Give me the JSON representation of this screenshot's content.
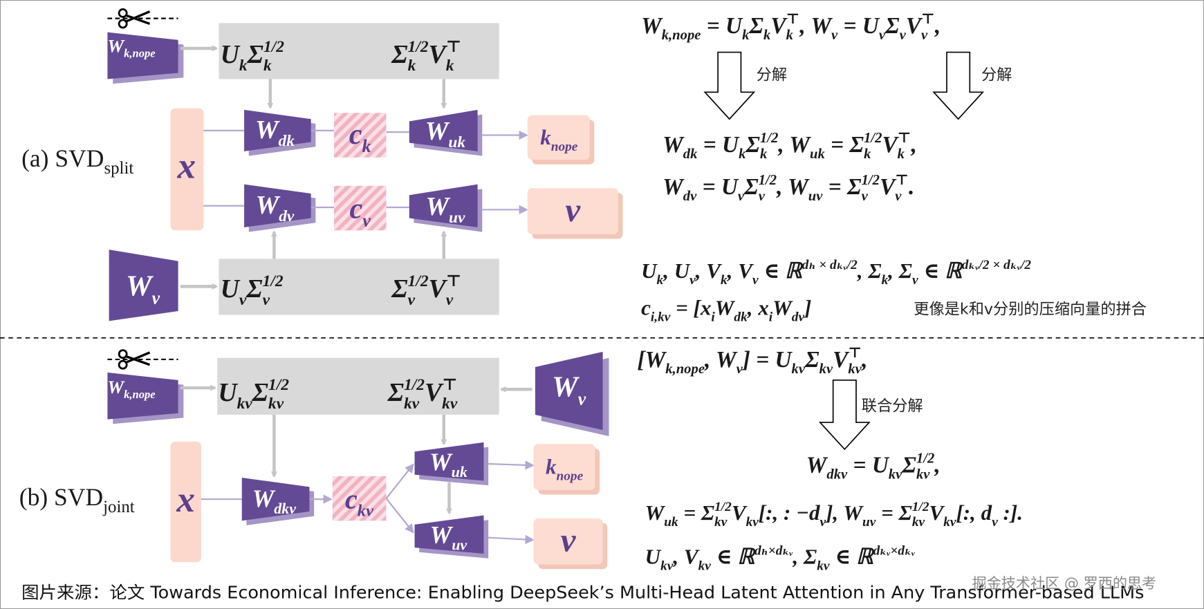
{
  "panel_a": {
    "title": [
      {
        "t": "(a) SVD"
      },
      {
        "t": "split",
        "s": "sub"
      }
    ],
    "w_k_nope": [
      {
        "t": "W"
      },
      {
        "t": "k,nope",
        "s": "sub"
      }
    ],
    "top_left": [
      {
        "t": "U"
      },
      {
        "t": "k",
        "s": "sub"
      },
      {
        "t": "Σ"
      },
      {
        "t": "1/2",
        "s": "sup"
      },
      {
        "t": "k",
        "s": "sub"
      }
    ],
    "top_right": [
      {
        "t": "Σ"
      },
      {
        "t": "1/2",
        "s": "sup"
      },
      {
        "t": "k",
        "s": "sub"
      },
      {
        "t": "V"
      },
      {
        "t": "⊤",
        "s": "sup"
      },
      {
        "t": "k",
        "s": "sub"
      }
    ],
    "x": [
      {
        "t": "x"
      }
    ],
    "w_dk": [
      {
        "t": "W"
      },
      {
        "t": "dk",
        "s": "sub"
      }
    ],
    "c_k": [
      {
        "t": "c"
      },
      {
        "t": "k",
        "s": "sub"
      }
    ],
    "w_uk": [
      {
        "t": "W"
      },
      {
        "t": "uk",
        "s": "sub"
      }
    ],
    "k_nope": [
      {
        "t": "k"
      },
      {
        "t": "nope",
        "s": "sub"
      }
    ],
    "w_dv": [
      {
        "t": "W"
      },
      {
        "t": "dv",
        "s": "sub"
      }
    ],
    "c_v": [
      {
        "t": "c"
      },
      {
        "t": "v",
        "s": "sub"
      }
    ],
    "w_uv": [
      {
        "t": "W"
      },
      {
        "t": "uv",
        "s": "sub"
      }
    ],
    "v": [
      {
        "t": "v"
      }
    ],
    "w_v": [
      {
        "t": "W"
      },
      {
        "t": "v",
        "s": "sub"
      }
    ],
    "bottom_left": [
      {
        "t": "U"
      },
      {
        "t": "v",
        "s": "sub"
      },
      {
        "t": "Σ"
      },
      {
        "t": "1/2",
        "s": "sup"
      },
      {
        "t": "v",
        "s": "sub"
      }
    ],
    "bottom_right": [
      {
        "t": "Σ"
      },
      {
        "t": "1/2",
        "s": "sup"
      },
      {
        "t": "v",
        "s": "sub"
      },
      {
        "t": "V"
      },
      {
        "t": "⊤",
        "s": "sup"
      },
      {
        "t": "v",
        "s": "sub"
      }
    ],
    "eq_split": [
      {
        "t": "W"
      },
      {
        "t": "k,nope",
        "s": "sub"
      },
      {
        "t": " = U"
      },
      {
        "t": "k",
        "s": "sub"
      },
      {
        "t": "Σ"
      },
      {
        "t": "k",
        "s": "sub"
      },
      {
        "t": "V"
      },
      {
        "t": "k",
        "s": "sub"
      },
      {
        "t": "⊤",
        "s": "sup"
      },
      {
        "t": ",     W"
      },
      {
        "t": "v",
        "s": "sub"
      },
      {
        "t": " = U"
      },
      {
        "t": "v",
        "s": "sub"
      },
      {
        "t": "Σ"
      },
      {
        "t": "v",
        "s": "sub"
      },
      {
        "t": "V"
      },
      {
        "t": "v",
        "s": "sub"
      },
      {
        "t": "⊤",
        "s": "sup"
      },
      {
        "t": ","
      }
    ],
    "arrow_label_k": "分解",
    "arrow_label_v": "分解",
    "eq_dk_uk": [
      {
        "t": "W"
      },
      {
        "t": "dk",
        "s": "sub"
      },
      {
        "t": " = U"
      },
      {
        "t": "k",
        "s": "sub"
      },
      {
        "t": "Σ"
      },
      {
        "t": "1/2",
        "s": "sup"
      },
      {
        "t": "k",
        "s": "sub"
      },
      {
        "t": ",     W"
      },
      {
        "t": "uk",
        "s": "sub"
      },
      {
        "t": " = Σ"
      },
      {
        "t": "1/2",
        "s": "sup"
      },
      {
        "t": "k",
        "s": "sub"
      },
      {
        "t": "V"
      },
      {
        "t": "⊤",
        "s": "sup"
      },
      {
        "t": "k",
        "s": "sub"
      },
      {
        "t": ","
      }
    ],
    "eq_dv_uv": [
      {
        "t": "W"
      },
      {
        "t": "dv",
        "s": "sub"
      },
      {
        "t": " = U"
      },
      {
        "t": "v",
        "s": "sub"
      },
      {
        "t": "Σ"
      },
      {
        "t": "1/2",
        "s": "sup"
      },
      {
        "t": "v",
        "s": "sub"
      },
      {
        "t": ",     W"
      },
      {
        "t": "uv",
        "s": "sub"
      },
      {
        "t": " = Σ"
      },
      {
        "t": "1/2",
        "s": "sup"
      },
      {
        "t": "v",
        "s": "sub"
      },
      {
        "t": "V"
      },
      {
        "t": "⊤",
        "s": "sup"
      },
      {
        "t": "v",
        "s": "sub"
      },
      {
        "t": "."
      }
    ],
    "eq_dims": [
      {
        "t": "U"
      },
      {
        "t": "k",
        "s": "sub"
      },
      {
        "t": ", U"
      },
      {
        "t": "v",
        "s": "sub"
      },
      {
        "t": ", V"
      },
      {
        "t": "k",
        "s": "sub"
      },
      {
        "t": ", V"
      },
      {
        "t": "v",
        "s": "sub"
      },
      {
        "t": "  ∈  ℝ"
      },
      {
        "t": "dₕ × dₖᵥ/2",
        "s": "sup"
      },
      {
        "t": ",  Σ"
      },
      {
        "t": "k",
        "s": "sub"
      },
      {
        "t": ", Σ"
      },
      {
        "t": "v",
        "s": "sub"
      },
      {
        "t": "  ∈ ℝ"
      },
      {
        "t": "dₖᵥ/2 × dₖᵥ/2",
        "s": "sup"
      }
    ],
    "eq_c": [
      {
        "t": "c"
      },
      {
        "t": "i,kv",
        "s": "sub"
      },
      {
        "t": " = [x"
      },
      {
        "t": "i",
        "s": "sub"
      },
      {
        "t": "W"
      },
      {
        "t": "dk",
        "s": "sub"
      },
      {
        "t": ", x"
      },
      {
        "t": "i",
        "s": "sub"
      },
      {
        "t": "W"
      },
      {
        "t": "dv",
        "s": "sub"
      },
      {
        "t": "]"
      }
    ],
    "note": "更像是k和v分别的压缩向量的拼合"
  },
  "panel_b": {
    "title": [
      {
        "t": "(b) SVD"
      },
      {
        "t": "joint",
        "s": "sub"
      }
    ],
    "w_k_nope": [
      {
        "t": "W"
      },
      {
        "t": "k,nope",
        "s": "sub"
      }
    ],
    "top_left": [
      {
        "t": "U"
      },
      {
        "t": "kv",
        "s": "sub"
      },
      {
        "t": "Σ"
      },
      {
        "t": "1/2",
        "s": "sup"
      },
      {
        "t": "kv",
        "s": "sub"
      }
    ],
    "top_right": [
      {
        "t": "Σ"
      },
      {
        "t": "1/2",
        "s": "sup"
      },
      {
        "t": "kv",
        "s": "sub"
      },
      {
        "t": "V"
      },
      {
        "t": "⊤",
        "s": "sup"
      },
      {
        "t": "kv",
        "s": "sub"
      }
    ],
    "w_v": [
      {
        "t": "W"
      },
      {
        "t": "v",
        "s": "sub"
      }
    ],
    "x": [
      {
        "t": "x"
      }
    ],
    "w_dkv": [
      {
        "t": "W"
      },
      {
        "t": "dkv",
        "s": "sub"
      }
    ],
    "c_kv": [
      {
        "t": "c"
      },
      {
        "t": "kv",
        "s": "sub"
      }
    ],
    "w_uk": [
      {
        "t": "W"
      },
      {
        "t": "uk",
        "s": "sub"
      }
    ],
    "k_nope": [
      {
        "t": "k"
      },
      {
        "t": "nope",
        "s": "sub"
      }
    ],
    "w_uv": [
      {
        "t": "W"
      },
      {
        "t": "uv",
        "s": "sub"
      }
    ],
    "v": [
      {
        "t": "v"
      }
    ],
    "eq_joint": [
      {
        "t": "[W"
      },
      {
        "t": "k,nope",
        "s": "sub"
      },
      {
        "t": ", W"
      },
      {
        "t": "v",
        "s": "sub"
      },
      {
        "t": "] = U"
      },
      {
        "t": "kv",
        "s": "sub"
      },
      {
        "t": "Σ"
      },
      {
        "t": "kv",
        "s": "sub"
      },
      {
        "t": "V"
      },
      {
        "t": "kv",
        "s": "sub"
      },
      {
        "t": "⊤",
        "s": "sup"
      },
      {
        "t": ","
      }
    ],
    "arrow_label": "联合分解",
    "eq_dkv": [
      {
        "t": "W"
      },
      {
        "t": "dkv",
        "s": "sub"
      },
      {
        "t": " = U"
      },
      {
        "t": "kv",
        "s": "sub"
      },
      {
        "t": "Σ"
      },
      {
        "t": "1/2",
        "s": "sup"
      },
      {
        "t": "kv",
        "s": "sub"
      },
      {
        "t": ","
      }
    ],
    "eq_uk_uv": [
      {
        "t": "W"
      },
      {
        "t": "uk",
        "s": "sub"
      },
      {
        "t": " = Σ"
      },
      {
        "t": "1/2",
        "s": "sup"
      },
      {
        "t": "kv",
        "s": "sub"
      },
      {
        "t": "V"
      },
      {
        "t": "kv",
        "s": "sub"
      },
      {
        "t": "[:, : −d"
      },
      {
        "t": "v",
        "s": "sub"
      },
      {
        "t": "], W"
      },
      {
        "t": "uv",
        "s": "sub"
      },
      {
        "t": " = Σ"
      },
      {
        "t": "1/2",
        "s": "sup"
      },
      {
        "t": "kv",
        "s": "sub"
      },
      {
        "t": "V"
      },
      {
        "t": "kv",
        "s": "sub"
      },
      {
        "t": "[:, d"
      },
      {
        "t": "v",
        "s": "sub"
      },
      {
        "t": " :]."
      }
    ],
    "eq_dims": [
      {
        "t": "U"
      },
      {
        "t": "kv",
        "s": "sub"
      },
      {
        "t": ", V"
      },
      {
        "t": "kv",
        "s": "sub"
      },
      {
        "t": " ∈ ℝ"
      },
      {
        "t": "dₕ×dₖᵥ",
        "s": "sup"
      },
      {
        "t": ", Σ"
      },
      {
        "t": "kv",
        "s": "sub"
      },
      {
        "t": " ∈ ℝ"
      },
      {
        "t": "dₖᵥ×dₖᵥ",
        "s": "sup"
      }
    ]
  },
  "footer": "图片来源：论文 Towards Economical Inference: Enabling DeepSeek’s Multi-Head Latent Attention in Any Transformer-based LLMs",
  "watermark": "掘金技术社区 @ 罗西的思考"
}
